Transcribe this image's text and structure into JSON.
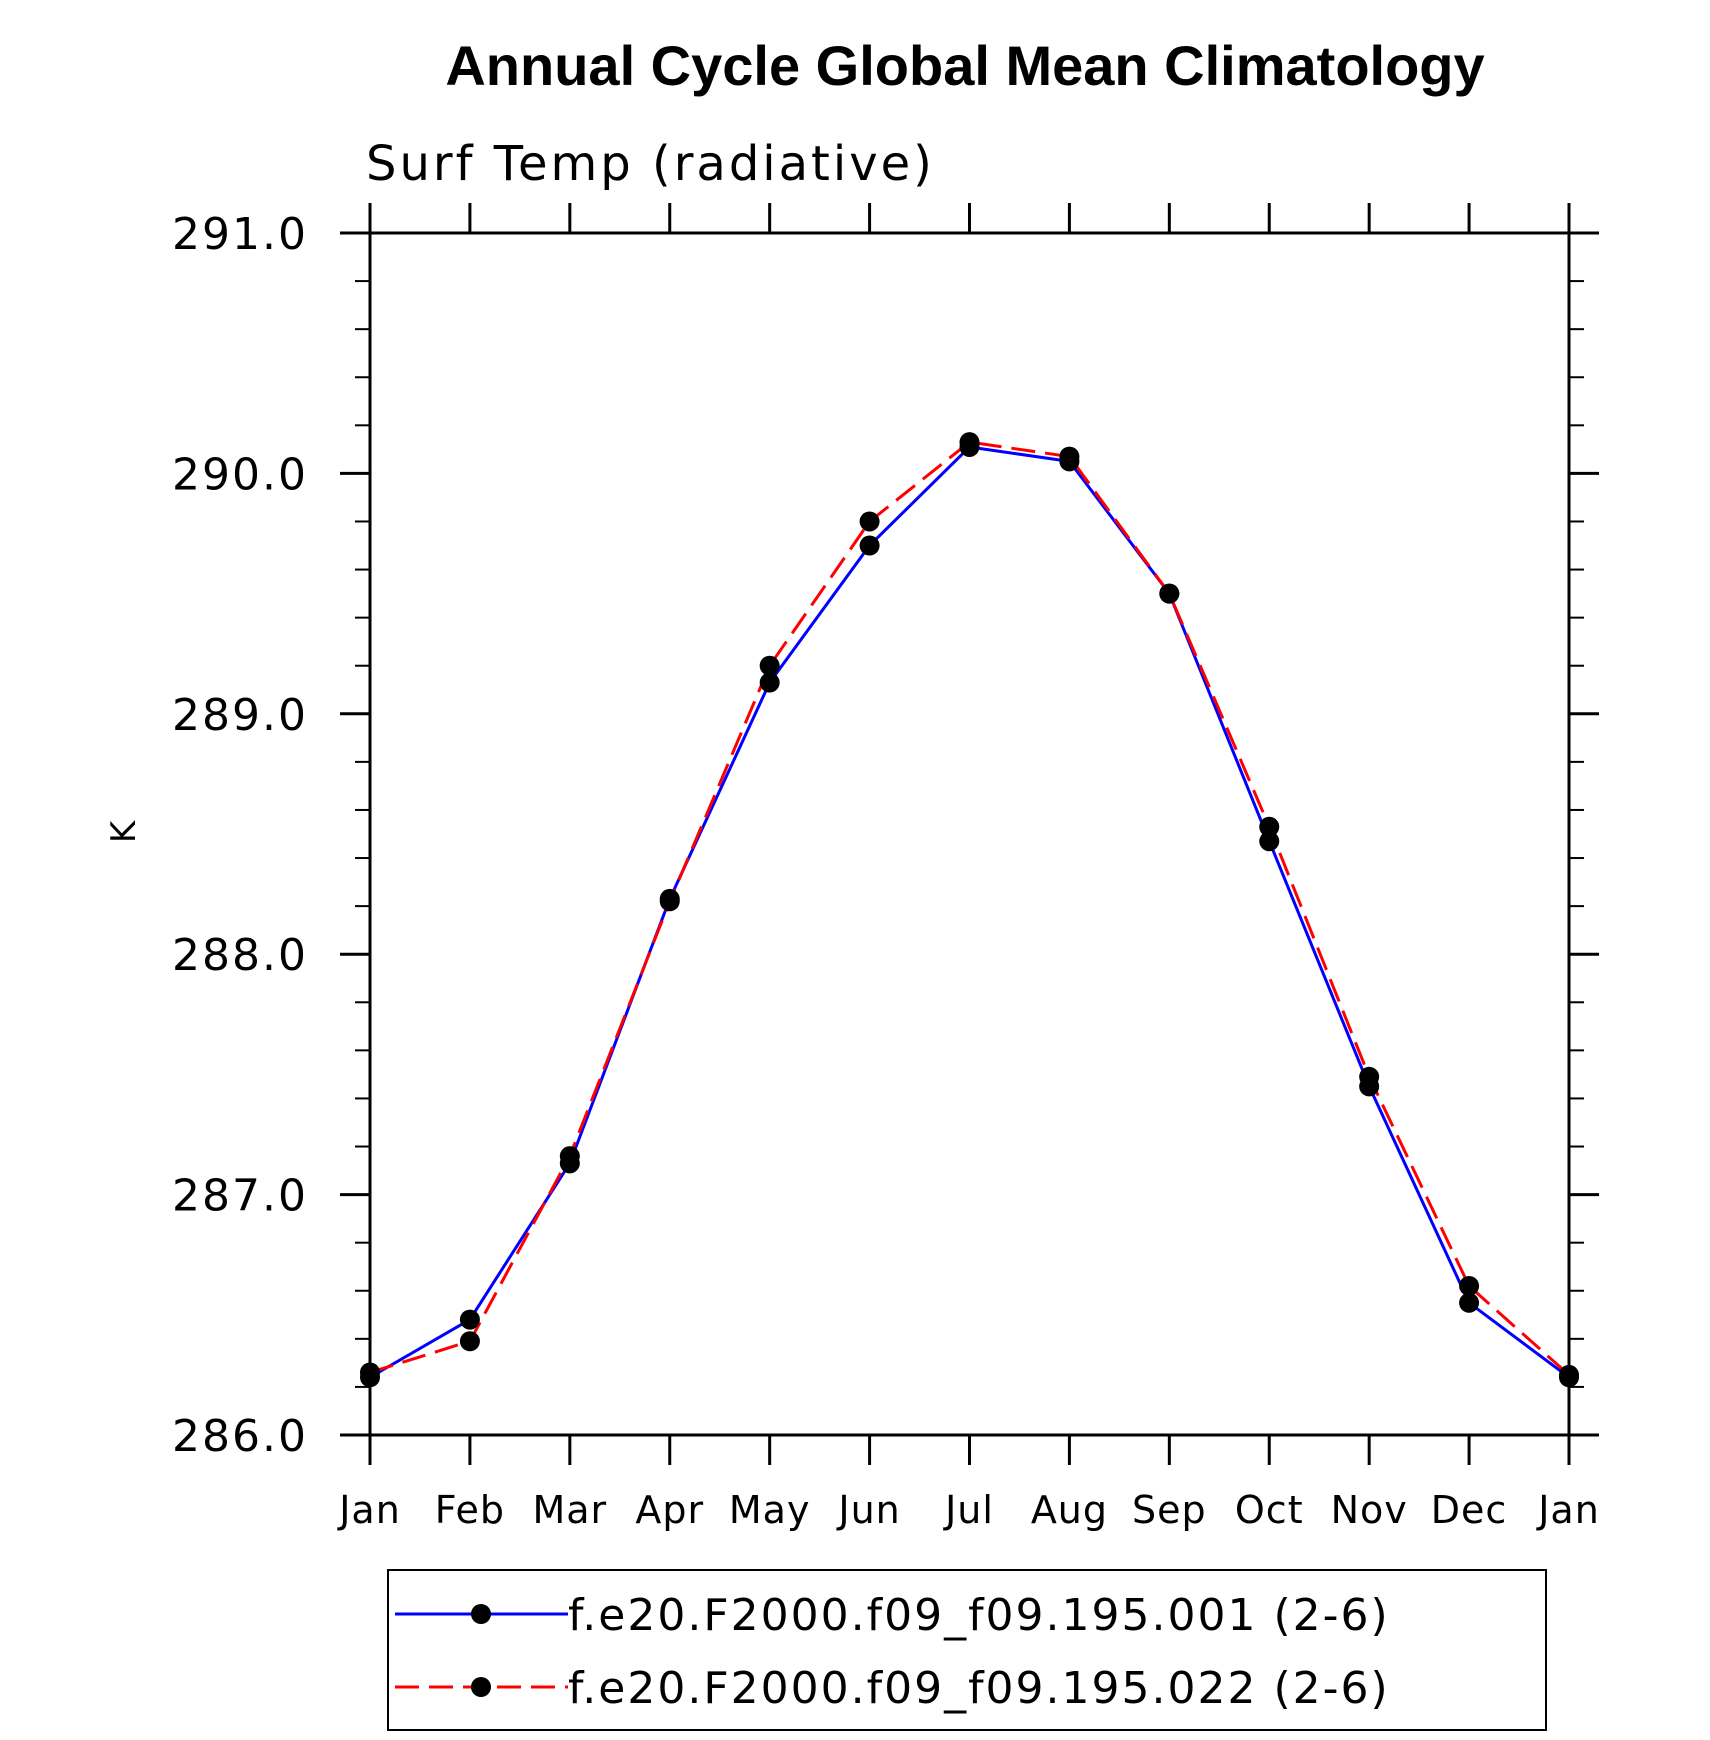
{
  "chart_data": {
    "type": "line",
    "title": "Annual Cycle Global Mean Climatology",
    "subtitle": "Surf Temp (radiative)",
    "xlabel": "",
    "ylabel": "K",
    "ylim": [
      286.0,
      291.0
    ],
    "yticks": [
      "286.0",
      "287.0",
      "288.0",
      "289.0",
      "290.0",
      "291.0"
    ],
    "categories": [
      "Jan",
      "Feb",
      "Mar",
      "Apr",
      "May",
      "Jun",
      "Jul",
      "Aug",
      "Sep",
      "Oct",
      "Nov",
      "Dec",
      "Jan"
    ],
    "series": [
      {
        "name": "f.e20.F2000.f09_f09.195.001 (2-6)",
        "color": "#0000ff",
        "dash": "solid",
        "values": [
          286.24,
          286.48,
          287.13,
          288.23,
          289.13,
          289.7,
          290.11,
          290.05,
          289.5,
          288.47,
          287.45,
          286.55,
          286.24
        ]
      },
      {
        "name": "f.e20.F2000.f09_f09.195.022 (2-6)",
        "color": "#ff0000",
        "dash": "dashed",
        "values": [
          286.26,
          286.39,
          287.16,
          288.22,
          289.2,
          289.8,
          290.13,
          290.07,
          289.5,
          288.53,
          287.49,
          286.62,
          286.25
        ]
      }
    ],
    "grid": false,
    "legend": "bottom"
  }
}
